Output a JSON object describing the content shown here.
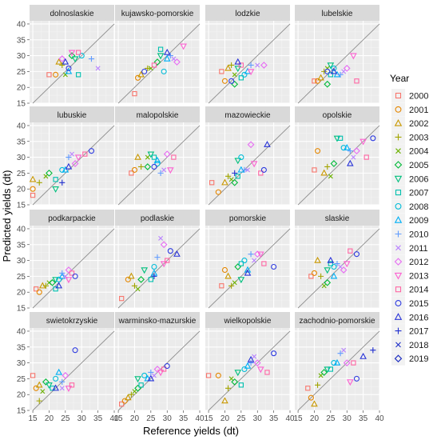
{
  "chart_data": {
    "type": "scatter",
    "facet_type": "grid 4x4",
    "xlabel": "Reference yields (dt)",
    "ylabel": "Predicted yields (dt)",
    "xlim": [
      14,
      40
    ],
    "ylim": [
      15,
      41
    ],
    "x_ticks": [
      "15",
      "20",
      "25",
      "30",
      "35",
      "40"
    ],
    "y_ticks": [
      "15",
      "20",
      "25",
      "30",
      "35",
      "40"
    ],
    "grid": true,
    "reference_line": "y = x",
    "legend": {
      "title": "Year",
      "placement": "right",
      "entries": [
        {
          "year": "2000",
          "color": "#F8766D",
          "shape": "square"
        },
        {
          "year": "2001",
          "color": "#E58700",
          "shape": "circle"
        },
        {
          "year": "2002",
          "color": "#C99800",
          "shape": "triangle-up"
        },
        {
          "year": "2003",
          "color": "#A3A500",
          "shape": "plus"
        },
        {
          "year": "2004",
          "color": "#6BB100",
          "shape": "cross"
        },
        {
          "year": "2005",
          "color": "#00BA38",
          "shape": "diamond"
        },
        {
          "year": "2006",
          "color": "#00BF7D",
          "shape": "triangle-down"
        },
        {
          "year": "2007",
          "color": "#00C0AF",
          "shape": "square"
        },
        {
          "year": "2008",
          "color": "#00BCD8",
          "shape": "circle"
        },
        {
          "year": "2009",
          "color": "#00B0F6",
          "shape": "triangle-up"
        },
        {
          "year": "2010",
          "color": "#619CFF",
          "shape": "plus"
        },
        {
          "year": "2011",
          "color": "#B983FF",
          "shape": "cross"
        },
        {
          "year": "2012",
          "color": "#E76BF3",
          "shape": "diamond"
        },
        {
          "year": "2013",
          "color": "#FD61D1",
          "shape": "triangle-down"
        },
        {
          "year": "2014",
          "color": "#FF67A4",
          "shape": "square"
        },
        {
          "year": "2015",
          "color": "#2E3BE0",
          "shape": "circle"
        },
        {
          "year": "2016",
          "color": "#2A34D8",
          "shape": "triangle-up"
        },
        {
          "year": "2017",
          "color": "#2230D0",
          "shape": "plus"
        },
        {
          "year": "2018",
          "color": "#1E2EC8",
          "shape": "cross"
        },
        {
          "year": "2019",
          "color": "#1A2BC0",
          "shape": "diamond"
        }
      ]
    },
    "panels": [
      {
        "title": "dolnoslaskie",
        "points": [
          [
            20,
            24
          ],
          [
            22,
            24
          ],
          [
            23,
            28
          ],
          [
            24,
            27
          ],
          [
            25,
            24
          ],
          [
            27,
            30
          ],
          [
            28,
            29
          ],
          [
            29,
            24
          ],
          [
            30,
            30
          ],
          [
            26,
            25
          ],
          [
            33,
            29
          ],
          [
            35,
            26
          ],
          [
            24,
            29
          ],
          [
            27,
            31
          ],
          [
            29,
            31
          ],
          [
            26,
            26
          ],
          [
            25,
            28
          ]
        ]
      },
      {
        "title": "kujawsko-pomorskie",
        "points": [
          [
            20,
            18
          ],
          [
            21,
            23
          ],
          [
            22,
            24
          ],
          [
            24,
            26
          ],
          [
            25,
            26
          ],
          [
            27,
            28
          ],
          [
            28,
            30
          ],
          [
            28,
            32
          ],
          [
            29,
            25
          ],
          [
            30,
            29
          ],
          [
            31,
            30
          ],
          [
            32,
            29
          ],
          [
            33,
            28
          ],
          [
            35,
            33
          ],
          [
            26,
            27
          ],
          [
            23,
            25
          ],
          [
            30,
            31
          ]
        ]
      },
      {
        "title": "lodzkie",
        "points": [
          [
            19,
            25
          ],
          [
            20,
            22
          ],
          [
            21,
            26
          ],
          [
            22,
            27
          ],
          [
            23,
            24
          ],
          [
            23,
            21
          ],
          [
            24,
            26
          ],
          [
            25,
            23
          ],
          [
            26,
            24
          ],
          [
            27,
            25
          ],
          [
            28,
            27
          ],
          [
            30,
            27
          ],
          [
            32,
            27
          ],
          [
            28,
            25
          ],
          [
            25,
            27
          ],
          [
            22,
            22
          ],
          [
            24,
            28
          ]
        ]
      },
      {
        "title": "lubelskie",
        "points": [
          [
            20,
            22
          ],
          [
            21,
            22
          ],
          [
            22,
            23
          ],
          [
            23,
            25
          ],
          [
            24,
            26
          ],
          [
            24,
            21
          ],
          [
            25,
            27
          ],
          [
            25,
            24
          ],
          [
            26,
            26
          ],
          [
            27,
            24
          ],
          [
            28,
            24
          ],
          [
            29,
            25
          ],
          [
            30,
            26
          ],
          [
            32,
            30
          ],
          [
            33,
            22
          ],
          [
            24,
            25
          ],
          [
            26,
            25
          ]
        ]
      },
      {
        "title": "lubuskie",
        "points": [
          [
            15,
            18
          ],
          [
            15,
            20
          ],
          [
            15,
            23
          ],
          [
            17,
            22
          ],
          [
            19,
            24
          ],
          [
            20,
            25
          ],
          [
            22,
            20
          ],
          [
            22,
            23
          ],
          [
            24,
            26
          ],
          [
            25,
            26
          ],
          [
            26,
            30
          ],
          [
            27,
            31
          ],
          [
            28,
            28
          ],
          [
            29,
            30
          ],
          [
            31,
            31
          ],
          [
            33,
            32
          ],
          [
            26,
            27
          ],
          [
            24,
            22
          ]
        ]
      },
      {
        "title": "malopolskie",
        "points": [
          [
            19,
            25
          ],
          [
            20,
            26
          ],
          [
            21,
            30
          ],
          [
            22,
            27
          ],
          [
            24,
            30
          ],
          [
            24,
            27
          ],
          [
            25,
            31
          ],
          [
            26,
            30
          ],
          [
            27,
            28
          ],
          [
            27,
            29
          ],
          [
            28,
            25
          ],
          [
            29,
            26
          ],
          [
            30,
            31
          ],
          [
            31,
            26
          ],
          [
            32,
            30
          ],
          [
            26,
            27
          ]
        ]
      },
      {
        "title": "mazowieckie",
        "points": [
          [
            16,
            22
          ],
          [
            18,
            19
          ],
          [
            20,
            22
          ],
          [
            21,
            24
          ],
          [
            22,
            23
          ],
          [
            23,
            22
          ],
          [
            24,
            29
          ],
          [
            24,
            24
          ],
          [
            25,
            30
          ],
          [
            25,
            26
          ],
          [
            26,
            26
          ],
          [
            27,
            26
          ],
          [
            28,
            34
          ],
          [
            29,
            28
          ],
          [
            31,
            25
          ],
          [
            32,
            26
          ],
          [
            33,
            34
          ],
          [
            23,
            25
          ]
        ]
      },
      {
        "title": "opolskie",
        "points": [
          [
            20,
            26
          ],
          [
            21,
            32
          ],
          [
            23,
            25
          ],
          [
            24,
            27
          ],
          [
            25,
            24
          ],
          [
            26,
            28
          ],
          [
            27,
            36
          ],
          [
            28,
            36
          ],
          [
            29,
            33
          ],
          [
            30,
            33
          ],
          [
            31,
            32
          ],
          [
            32,
            30
          ],
          [
            33,
            32
          ],
          [
            35,
            35
          ],
          [
            36,
            30
          ],
          [
            38,
            36
          ],
          [
            31,
            28
          ]
        ]
      },
      {
        "title": "podkarpackie",
        "points": [
          [
            16,
            21
          ],
          [
            17,
            20
          ],
          [
            18,
            22
          ],
          [
            19,
            22
          ],
          [
            20,
            23
          ],
          [
            21,
            23
          ],
          [
            22,
            24
          ],
          [
            22,
            21
          ],
          [
            23,
            24
          ],
          [
            24,
            25
          ],
          [
            24,
            26
          ],
          [
            25,
            25
          ],
          [
            26,
            27
          ],
          [
            26,
            24
          ],
          [
            27,
            26
          ],
          [
            28,
            25
          ],
          [
            23,
            22
          ]
        ]
      },
      {
        "title": "podlaskie",
        "points": [
          [
            16,
            18
          ],
          [
            18,
            24
          ],
          [
            19,
            25
          ],
          [
            20,
            22
          ],
          [
            21,
            21
          ],
          [
            22,
            24
          ],
          [
            23,
            27
          ],
          [
            25,
            24
          ],
          [
            26,
            28
          ],
          [
            26,
            26
          ],
          [
            27,
            31
          ],
          [
            28,
            37
          ],
          [
            29,
            35
          ],
          [
            29,
            29
          ],
          [
            30,
            30
          ],
          [
            31,
            33
          ],
          [
            33,
            32
          ],
          [
            26,
            25
          ]
        ]
      },
      {
        "title": "pomorskie",
        "points": [
          [
            19,
            22
          ],
          [
            20,
            27
          ],
          [
            21,
            25
          ],
          [
            22,
            22
          ],
          [
            23,
            23
          ],
          [
            24,
            28
          ],
          [
            25,
            24
          ],
          [
            25,
            29
          ],
          [
            26,
            30
          ],
          [
            27,
            27
          ],
          [
            28,
            32
          ],
          [
            29,
            30
          ],
          [
            30,
            32
          ],
          [
            31,
            32
          ],
          [
            32,
            29
          ],
          [
            35,
            28
          ],
          [
            27,
            26
          ]
        ]
      },
      {
        "title": "slaskie",
        "points": [
          [
            19,
            25
          ],
          [
            20,
            26
          ],
          [
            21,
            30
          ],
          [
            22,
            25
          ],
          [
            23,
            22
          ],
          [
            24,
            23
          ],
          [
            24,
            27
          ],
          [
            25,
            29
          ],
          [
            26,
            28
          ],
          [
            26,
            25
          ],
          [
            27,
            29
          ],
          [
            28,
            28
          ],
          [
            29,
            27
          ],
          [
            30,
            29
          ],
          [
            31,
            33
          ],
          [
            33,
            32
          ],
          [
            25,
            30
          ]
        ]
      },
      {
        "title": "swietokrzyskie",
        "points": [
          [
            15,
            26
          ],
          [
            16,
            22
          ],
          [
            17,
            23
          ],
          [
            17,
            18
          ],
          [
            18,
            21
          ],
          [
            19,
            24
          ],
          [
            20,
            23
          ],
          [
            21,
            22
          ],
          [
            22,
            25
          ],
          [
            23,
            27
          ],
          [
            24,
            24
          ],
          [
            24,
            22
          ],
          [
            25,
            26
          ],
          [
            26,
            22
          ],
          [
            27,
            23
          ],
          [
            28,
            34
          ],
          [
            22,
            22
          ]
        ]
      },
      {
        "title": "warminsko-mazurskie",
        "points": [
          [
            16,
            17
          ],
          [
            17,
            18
          ],
          [
            18,
            19
          ],
          [
            19,
            20
          ],
          [
            20,
            21
          ],
          [
            21,
            22
          ],
          [
            21,
            25
          ],
          [
            22,
            23
          ],
          [
            23,
            26
          ],
          [
            24,
            25
          ],
          [
            25,
            27
          ],
          [
            26,
            26
          ],
          [
            27,
            28
          ],
          [
            28,
            27
          ],
          [
            29,
            28
          ],
          [
            30,
            29
          ],
          [
            25,
            25
          ]
        ]
      },
      {
        "title": "wielkopolskie",
        "points": [
          [
            15,
            26
          ],
          [
            18,
            26
          ],
          [
            20,
            18
          ],
          [
            21,
            22
          ],
          [
            22,
            25
          ],
          [
            23,
            24
          ],
          [
            24,
            27
          ],
          [
            25,
            23
          ],
          [
            26,
            28
          ],
          [
            27,
            29
          ],
          [
            28,
            30
          ],
          [
            29,
            32
          ],
          [
            30,
            30
          ],
          [
            31,
            28
          ],
          [
            33,
            27
          ],
          [
            35,
            33
          ],
          [
            28,
            31
          ]
        ]
      },
      {
        "title": "zachodnio-pomorskie",
        "points": [
          [
            18,
            22
          ],
          [
            19,
            19
          ],
          [
            20,
            17
          ],
          [
            21,
            23
          ],
          [
            22,
            26
          ],
          [
            23,
            27
          ],
          [
            24,
            28
          ],
          [
            25,
            28
          ],
          [
            26,
            30
          ],
          [
            27,
            30
          ],
          [
            28,
            33
          ],
          [
            29,
            34
          ],
          [
            30,
            30
          ],
          [
            31,
            24
          ],
          [
            32,
            30
          ],
          [
            33,
            25
          ],
          [
            35,
            32
          ],
          [
            38,
            34
          ]
        ]
      }
    ]
  }
}
